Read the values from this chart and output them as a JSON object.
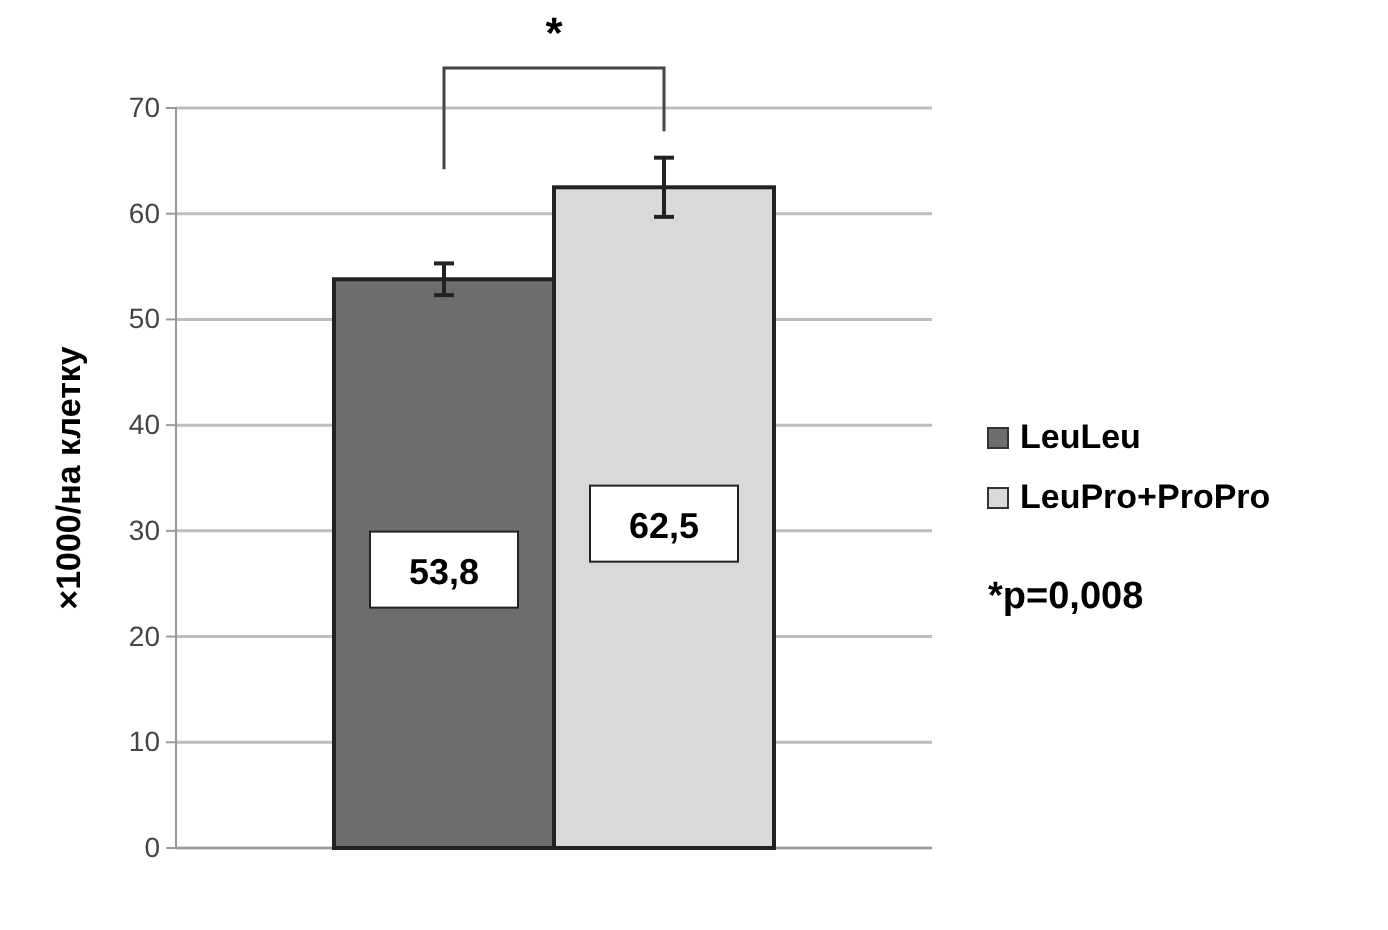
{
  "chart_data": {
    "type": "bar",
    "categories": [
      null
    ],
    "ylabel": "×1000/на клетку",
    "series": [
      {
        "name": "LeuLeu",
        "color": "#6d6d6d",
        "values": [
          53.8
        ],
        "errors": [
          1.5
        ],
        "value_labels": [
          "53,8"
        ]
      },
      {
        "name": "LeuPro+ProPro",
        "color": "#d9d9d9",
        "values": [
          62.5
        ],
        "errors": [
          2.8
        ],
        "value_labels": [
          "62,5"
        ]
      }
    ],
    "ylim": [
      0,
      70
    ],
    "yticks": [
      0,
      10,
      20,
      30,
      40,
      50,
      60,
      70
    ],
    "grid": "y",
    "legend": "right",
    "annotations": [
      "*",
      "*p=0,008"
    ]
  }
}
